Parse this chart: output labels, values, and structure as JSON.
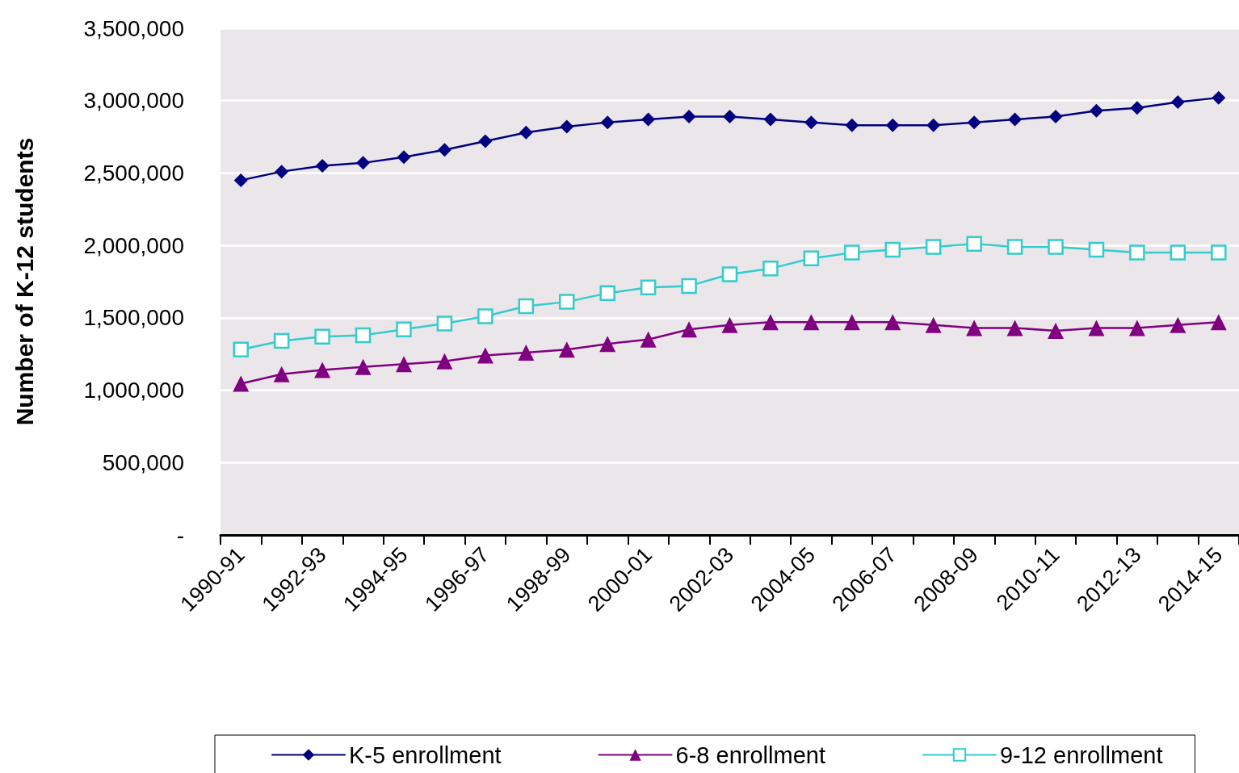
{
  "chart_data": {
    "type": "line",
    "ylabel": "Number of K-12 students",
    "categories": [
      "1990-91",
      null,
      "1992-93",
      null,
      "1994-95",
      null,
      "1996-97",
      null,
      "1998-99",
      null,
      "2000-01",
      null,
      "2002-03",
      null,
      "2004-05",
      null,
      "2006-07",
      null,
      "2008-09",
      null,
      "2010-11",
      null,
      "2012-13",
      null,
      "2014-15"
    ],
    "series": [
      {
        "name": "K-5 enrollment",
        "color": "#000080",
        "marker": "diamond",
        "values": [
          2450000,
          2510000,
          2550000,
          2570000,
          2610000,
          2660000,
          2720000,
          2780000,
          2820000,
          2850000,
          2870000,
          2890000,
          2890000,
          2870000,
          2850000,
          2830000,
          2830000,
          2830000,
          2850000,
          2870000,
          2890000,
          2930000,
          2950000,
          2990000,
          3020000
        ]
      },
      {
        "name": "6-8 enrollment",
        "color": "#800080",
        "marker": "triangle",
        "values": [
          1045000,
          1110000,
          1140000,
          1160000,
          1180000,
          1200000,
          1240000,
          1260000,
          1280000,
          1320000,
          1350000,
          1420000,
          1450000,
          1470000,
          1470000,
          1470000,
          1470000,
          1450000,
          1430000,
          1430000,
          1410000,
          1430000,
          1430000,
          1450000,
          1470000
        ]
      },
      {
        "name": "9-12 enrollment",
        "color": "#33cccc",
        "marker": "square",
        "values": [
          1280000,
          1340000,
          1370000,
          1380000,
          1420000,
          1460000,
          1510000,
          1580000,
          1610000,
          1670000,
          1710000,
          1720000,
          1800000,
          1840000,
          1910000,
          1950000,
          1970000,
          1990000,
          2010000,
          1990000,
          1990000,
          1970000,
          1950000,
          1950000,
          1950000
        ]
      }
    ],
    "ylim": [
      0,
      3500000
    ],
    "yticks": [
      {
        "value": 0,
        "label": "-"
      },
      {
        "value": 500000,
        "label": "500,000"
      },
      {
        "value": 1000000,
        "label": "1,000,000"
      },
      {
        "value": 1500000,
        "label": "1,500,000"
      },
      {
        "value": 2000000,
        "label": "2,000,000"
      },
      {
        "value": 2500000,
        "label": "2,500,000"
      },
      {
        "value": 3000000,
        "label": "3,000,000"
      },
      {
        "value": 3500000,
        "label": "3,500,000"
      }
    ],
    "grid": "y",
    "legend": "bottom",
    "line_style": "solid"
  }
}
